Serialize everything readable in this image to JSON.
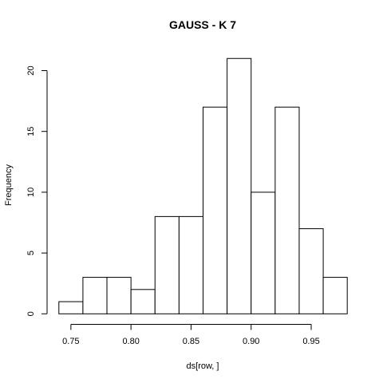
{
  "chart_data": {
    "type": "bar",
    "title": "GAUSS - K 7",
    "xlabel": "ds[row, ]",
    "ylabel": "Frequency",
    "bins": [
      {
        "from": 0.74,
        "to": 0.76,
        "count": 1
      },
      {
        "from": 0.76,
        "to": 0.78,
        "count": 3
      },
      {
        "from": 0.78,
        "to": 0.8,
        "count": 3
      },
      {
        "from": 0.8,
        "to": 0.82,
        "count": 2
      },
      {
        "from": 0.82,
        "to": 0.84,
        "count": 8
      },
      {
        "from": 0.84,
        "to": 0.86,
        "count": 8
      },
      {
        "from": 0.86,
        "to": 0.88,
        "count": 17
      },
      {
        "from": 0.88,
        "to": 0.9,
        "count": 21
      },
      {
        "from": 0.9,
        "to": 0.92,
        "count": 10
      },
      {
        "from": 0.92,
        "to": 0.94,
        "count": 17
      },
      {
        "from": 0.94,
        "to": 0.96,
        "count": 7
      },
      {
        "from": 0.96,
        "to": 0.98,
        "count": 3
      }
    ],
    "xlim": [
      0.74,
      0.98
    ],
    "ylim": [
      0,
      21
    ],
    "x_ticks": [
      0.75,
      0.8,
      0.85,
      0.9,
      0.95
    ],
    "x_tick_labels": [
      "0.75",
      "0.80",
      "0.85",
      "0.90",
      "0.95"
    ],
    "y_ticks": [
      0,
      5,
      10,
      15,
      20
    ],
    "y_tick_labels": [
      "0",
      "5",
      "10",
      "15",
      "20"
    ],
    "grid": false,
    "bar_fill": "#ffffff",
    "bar_stroke": "#000000"
  }
}
